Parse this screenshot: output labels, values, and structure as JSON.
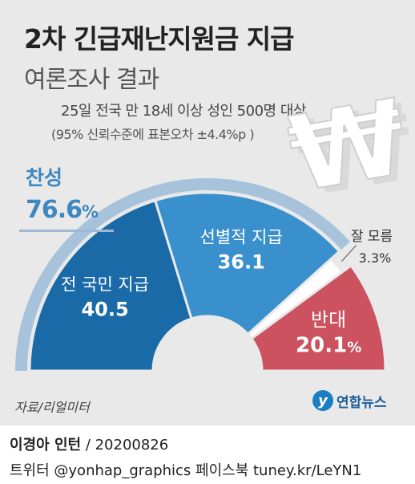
{
  "header": {
    "title": "2차 긴급재난지원금 지급",
    "subtitle": "여론조사 결과",
    "survey_line": "25일 전국 만 18세 이상 성인 500명 대상",
    "margin_line": "(95% 신뢰수준에 표본오차 ±4.4%p )"
  },
  "favor": {
    "label": "찬성",
    "value": "76.6",
    "unit": "%"
  },
  "chart_data": {
    "type": "pie",
    "style": "semi-donut",
    "title": "2차 긴급재난지원금 지급",
    "unit": "%",
    "slices": [
      {
        "label": "전 국민 지급",
        "value": 40.5,
        "display": "40.5",
        "color": "#1a6aa8"
      },
      {
        "label": "선별적 지급",
        "value": 36.1,
        "display": "36.1",
        "color": "#3a90cc"
      },
      {
        "label": "잘 모름",
        "value": 3.3,
        "display": "3.3%",
        "color": "#ffffff"
      },
      {
        "label": "반대",
        "value": 20.1,
        "display": "20.1",
        "display_unit": "%",
        "color": "#cb525e"
      }
    ],
    "group": {
      "label": "찬성",
      "value": 76.6,
      "members": [
        "전 국민 지급",
        "선별적 지급"
      ],
      "color": "#a7c3dc"
    }
  },
  "footer": {
    "source": "자료/리얼미터",
    "logo_text": "연합뉴스",
    "author": "이경아 인턴",
    "date": "/ 20200826",
    "social": "트위터 @yonhap_graphics  페이스북 tuney.kr/LeYN1"
  },
  "colors": {
    "background": "#e9e9e9",
    "favor_accent": "#3e87c1",
    "oppose": "#cb525e"
  }
}
